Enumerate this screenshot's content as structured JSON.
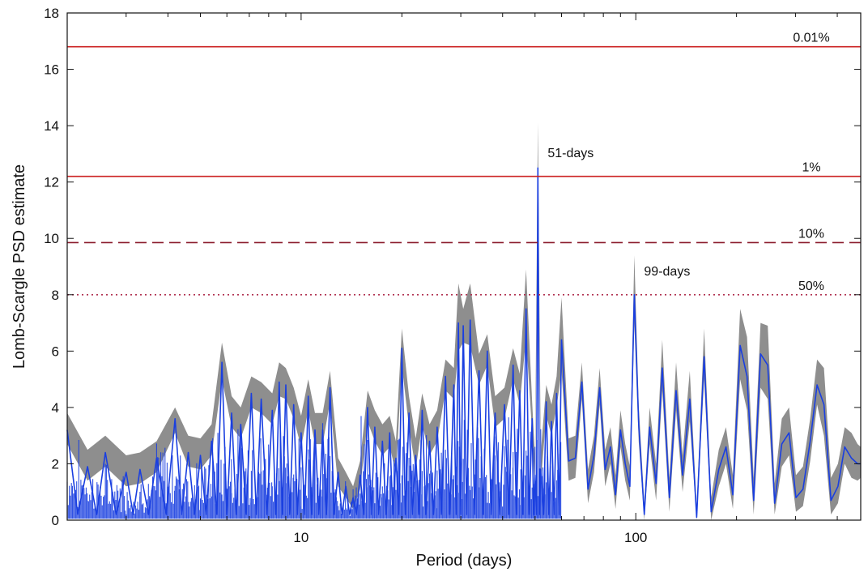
{
  "chart_data": {
    "type": "line",
    "title": "",
    "xlabel": "Period (days)",
    "ylabel": "Lomb-Scargle PSD estimate",
    "xscale": "log",
    "xlim": [
      2,
      470
    ],
    "ylim": [
      0,
      18
    ],
    "grid": false,
    "x_ticks": [
      10,
      100
    ],
    "x_tick_labels": [
      "10",
      "100"
    ],
    "y_ticks": [
      0,
      2,
      4,
      6,
      8,
      10,
      12,
      14,
      16,
      18
    ],
    "y_tick_labels": [
      "0",
      "2",
      "4",
      "6",
      "8",
      "10",
      "12",
      "14",
      "16",
      "18"
    ],
    "colors": {
      "series": "#1a3fe0",
      "band": "#7a7a7a",
      "threshold": "#cc2222",
      "threshold_dashed": "#8a1a2a",
      "threshold_dotted": "#b03050"
    },
    "thresholds": [
      {
        "label": "0.01%",
        "value": 16.8,
        "style": "solid"
      },
      {
        "label": "1%",
        "value": 12.2,
        "style": "solid"
      },
      {
        "label": "10%",
        "value": 9.85,
        "style": "dashed"
      },
      {
        "label": "50%",
        "value": 8.0,
        "style": "dotted"
      }
    ],
    "annotations": [
      {
        "text": "51-days",
        "x": 51,
        "y": 12.6
      },
      {
        "text": "99-days",
        "x": 99,
        "y": 8.4
      }
    ],
    "series": [
      {
        "x": [
          2.0,
          2.3,
          2.6,
          3.0,
          3.3,
          3.7,
          4.2,
          4.6,
          5.0,
          5.4,
          5.8,
          6.2,
          6.6,
          7.1,
          7.6,
          8.2,
          8.6,
          9.0,
          9.5,
          10.0,
          10.5,
          11.0,
          11.6,
          12.2,
          12.9,
          13.6,
          14.3,
          15.0,
          15.8,
          16.6,
          17.5,
          18.4,
          19.2,
          20.0,
          21.0,
          22.0,
          23.0,
          24.2,
          25.5,
          27.0,
          28.6,
          29.5,
          30.5,
          32.0,
          34.0,
          36.0,
          38.0,
          40.5,
          43.0,
          45.0,
          47.0,
          49.0,
          50.0,
          51.0,
          52.0,
          54.0,
          56.0,
          58.0,
          60.0,
          63.0,
          66.0,
          69.0,
          72.0,
          75.0,
          78.0,
          81.0,
          84.0,
          87.0,
          90.0,
          93.0,
          96.0,
          99.0,
          102.0,
          106.0,
          110.0,
          115.0,
          120.0,
          126.0,
          132.0,
          138.0,
          145.0,
          152.0,
          160.0,
          168.0,
          177.0,
          186.0,
          195.0,
          205.0,
          215.0,
          225.0,
          236.0,
          248.0,
          260.0,
          273.0,
          287.0,
          301.0,
          316.0,
          332.0,
          348.0,
          365.0,
          383.0,
          402.0,
          421.0,
          441.0,
          460.0,
          470.0
        ],
        "y": [
          3.2,
          1.9,
          2.4,
          1.7,
          1.8,
          2.2,
          3.6,
          2.4,
          2.3,
          2.8,
          5.6,
          3.8,
          3.4,
          4.5,
          4.3,
          3.9,
          4.9,
          4.8,
          4.1,
          3.1,
          4.4,
          3.2,
          3.2,
          4.7,
          1.7,
          1.2,
          0.8,
          1.6,
          4.0,
          3.3,
          2.8,
          3.1,
          2.2,
          6.1,
          3.8,
          2.3,
          3.9,
          2.8,
          3.3,
          5.1,
          4.8,
          7.0,
          6.9,
          7.1,
          5.3,
          6.0,
          3.8,
          4.1,
          5.5,
          4.6,
          7.5,
          3.6,
          1.6,
          12.5,
          1.8,
          4.2,
          3.5,
          4.5,
          6.4,
          2.1,
          2.2,
          4.9,
          1.1,
          2.3,
          4.7,
          1.8,
          2.6,
          0.9,
          3.2,
          2.0,
          1.2,
          8.0,
          3.4,
          0.2,
          3.3,
          1.3,
          5.4,
          0.8,
          4.6,
          1.6,
          4.3,
          0.1,
          5.8,
          0.3,
          1.8,
          2.6,
          0.9,
          6.2,
          5.1,
          0.7,
          5.9,
          5.5,
          0.6,
          2.7,
          3.1,
          0.8,
          1.1,
          2.8,
          4.8,
          4.1,
          0.7,
          1.2,
          2.6,
          2.2,
          2.0,
          2.0
        ],
        "band_upper": [
          3.8,
          2.5,
          3.0,
          2.3,
          2.4,
          2.8,
          4.0,
          3.0,
          2.9,
          3.4,
          6.3,
          4.4,
          4.0,
          5.1,
          4.9,
          4.5,
          5.6,
          5.4,
          4.7,
          3.7,
          5.0,
          3.8,
          3.8,
          5.3,
          2.2,
          1.7,
          1.2,
          2.1,
          4.6,
          3.9,
          3.4,
          3.7,
          2.8,
          6.8,
          4.4,
          2.9,
          4.5,
          3.4,
          3.9,
          5.7,
          5.4,
          8.4,
          7.5,
          8.4,
          5.9,
          6.6,
          4.4,
          4.7,
          6.1,
          5.2,
          8.9,
          4.2,
          2.2,
          14.1,
          2.4,
          4.8,
          4.1,
          5.1,
          7.9,
          2.9,
          3.0,
          5.6,
          1.8,
          3.0,
          5.4,
          2.5,
          3.3,
          1.6,
          3.9,
          2.7,
          1.9,
          9.4,
          4.1,
          0.6,
          4.0,
          2.0,
          6.4,
          1.5,
          5.6,
          2.3,
          5.3,
          0.5,
          6.8,
          0.8,
          2.5,
          3.3,
          1.6,
          7.5,
          6.5,
          1.5,
          7.0,
          6.9,
          1.3,
          3.6,
          4.0,
          1.6,
          1.9,
          3.6,
          5.7,
          5.4,
          1.5,
          2.0,
          3.3,
          3.1,
          2.7,
          2.6
        ],
        "band_lower": [
          2.7,
          1.4,
          1.9,
          1.2,
          1.3,
          1.7,
          3.1,
          1.9,
          1.8,
          2.3,
          5.0,
          3.3,
          2.9,
          4.0,
          3.8,
          3.4,
          4.4,
          4.3,
          3.6,
          2.6,
          3.9,
          2.7,
          2.7,
          4.2,
          1.2,
          0.8,
          0.4,
          1.1,
          3.5,
          2.8,
          2.3,
          2.6,
          1.7,
          5.5,
          3.3,
          1.8,
          3.4,
          2.3,
          2.8,
          4.6,
          4.3,
          6.0,
          6.3,
          6.2,
          4.8,
          5.5,
          3.3,
          3.6,
          5.0,
          4.1,
          6.5,
          3.1,
          1.1,
          11.4,
          1.3,
          3.7,
          3.0,
          4.0,
          5.3,
          1.4,
          1.5,
          4.3,
          0.6,
          1.7,
          4.1,
          1.2,
          2.0,
          0.4,
          2.6,
          1.4,
          0.7,
          7.0,
          2.8,
          0.0,
          2.7,
          0.7,
          4.6,
          0.3,
          3.9,
          1.0,
          3.5,
          0.0,
          5.0,
          0.0,
          1.2,
          2.0,
          0.4,
          5.0,
          3.9,
          0.2,
          4.7,
          4.3,
          0.2,
          1.9,
          2.3,
          0.3,
          0.5,
          2.1,
          4.1,
          3.0,
          0.2,
          0.6,
          2.0,
          1.5,
          1.4,
          1.5
        ]
      }
    ]
  }
}
